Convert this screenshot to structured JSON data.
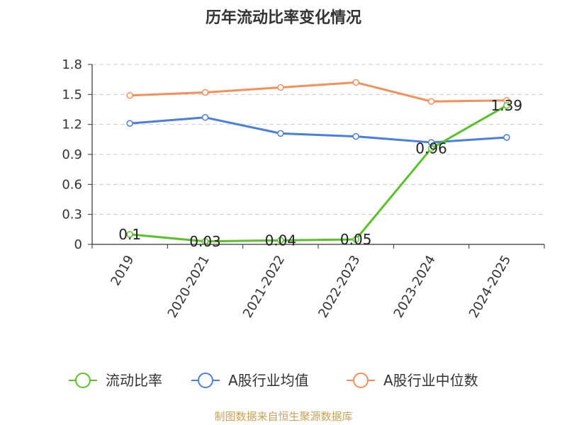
{
  "chart_data": {
    "type": "line",
    "title": "历年流动比率变化情况",
    "categories": [
      "2019",
      "2020-2021",
      "2021-2022",
      "2022-2023",
      "2023-2024",
      "2024-2025"
    ],
    "ylim": [
      0,
      1.8
    ],
    "yticks": [
      "0",
      "0.3",
      "0.6",
      "0.9",
      "1.2",
      "1.5",
      "1.8"
    ],
    "grid": true,
    "legend_position": "bottom",
    "series": [
      {
        "name": "流动比率",
        "color": "#5ac12b",
        "values": [
          0.1,
          0.03,
          0.04,
          0.05,
          0.96,
          1.39
        ],
        "labels": [
          "0.1",
          "0.03",
          "0.04",
          "0.05",
          "0.96",
          "1.39"
        ]
      },
      {
        "name": "A股行业均值",
        "color": "#4a7fdc",
        "values": [
          1.21,
          1.27,
          1.11,
          1.08,
          1.02,
          1.07
        ]
      },
      {
        "name": "A股行业中位数",
        "color": "#f5905a",
        "values": [
          1.49,
          1.52,
          1.57,
          1.62,
          1.43,
          1.44
        ]
      }
    ]
  },
  "source_text": "制图数据来自恒生聚源数据库"
}
